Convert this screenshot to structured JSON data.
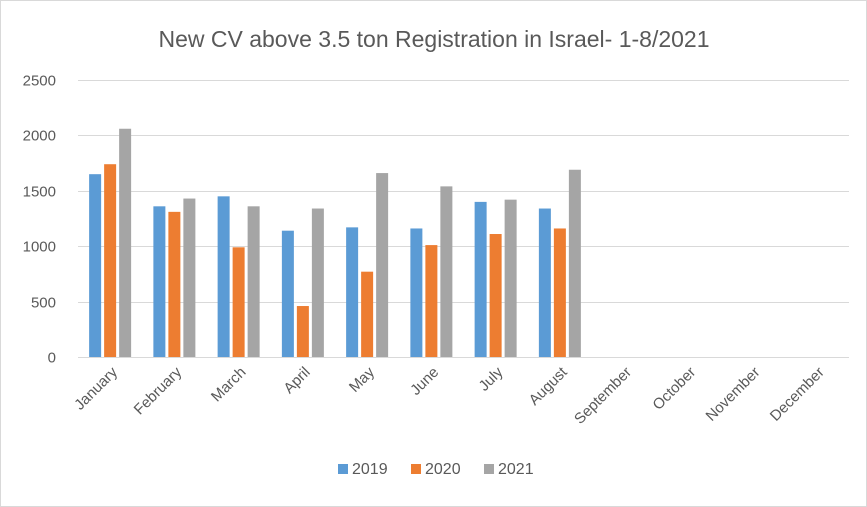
{
  "chart_data": {
    "type": "bar",
    "title": "New CV above 3.5 ton Registration in Israel- 1-8/2021",
    "xlabel": "",
    "ylabel": "",
    "categories": [
      "January",
      "February",
      "March",
      "April",
      "May",
      "June",
      "July",
      "August",
      "September",
      "October",
      "November",
      "December"
    ],
    "series": [
      {
        "name": "2019",
        "color": "#5b9bd5",
        "values": [
          1650,
          1360,
          1450,
          1140,
          1170,
          1160,
          1400,
          1340,
          null,
          null,
          null,
          null
        ]
      },
      {
        "name": "2020",
        "color": "#ed7d31",
        "values": [
          1740,
          1310,
          990,
          460,
          770,
          1010,
          1110,
          1160,
          null,
          null,
          null,
          null
        ]
      },
      {
        "name": "2021",
        "color": "#a5a5a5",
        "values": [
          2060,
          1430,
          1360,
          1340,
          1660,
          1540,
          1420,
          1690,
          null,
          null,
          null,
          null
        ]
      }
    ],
    "ylim": [
      0,
      2500
    ],
    "yticks": [
      0,
      500,
      1000,
      1500,
      2000,
      2500
    ],
    "grid": "horizontal",
    "legend_position": "bottom",
    "gridline_color": "#d9d9d9"
  }
}
